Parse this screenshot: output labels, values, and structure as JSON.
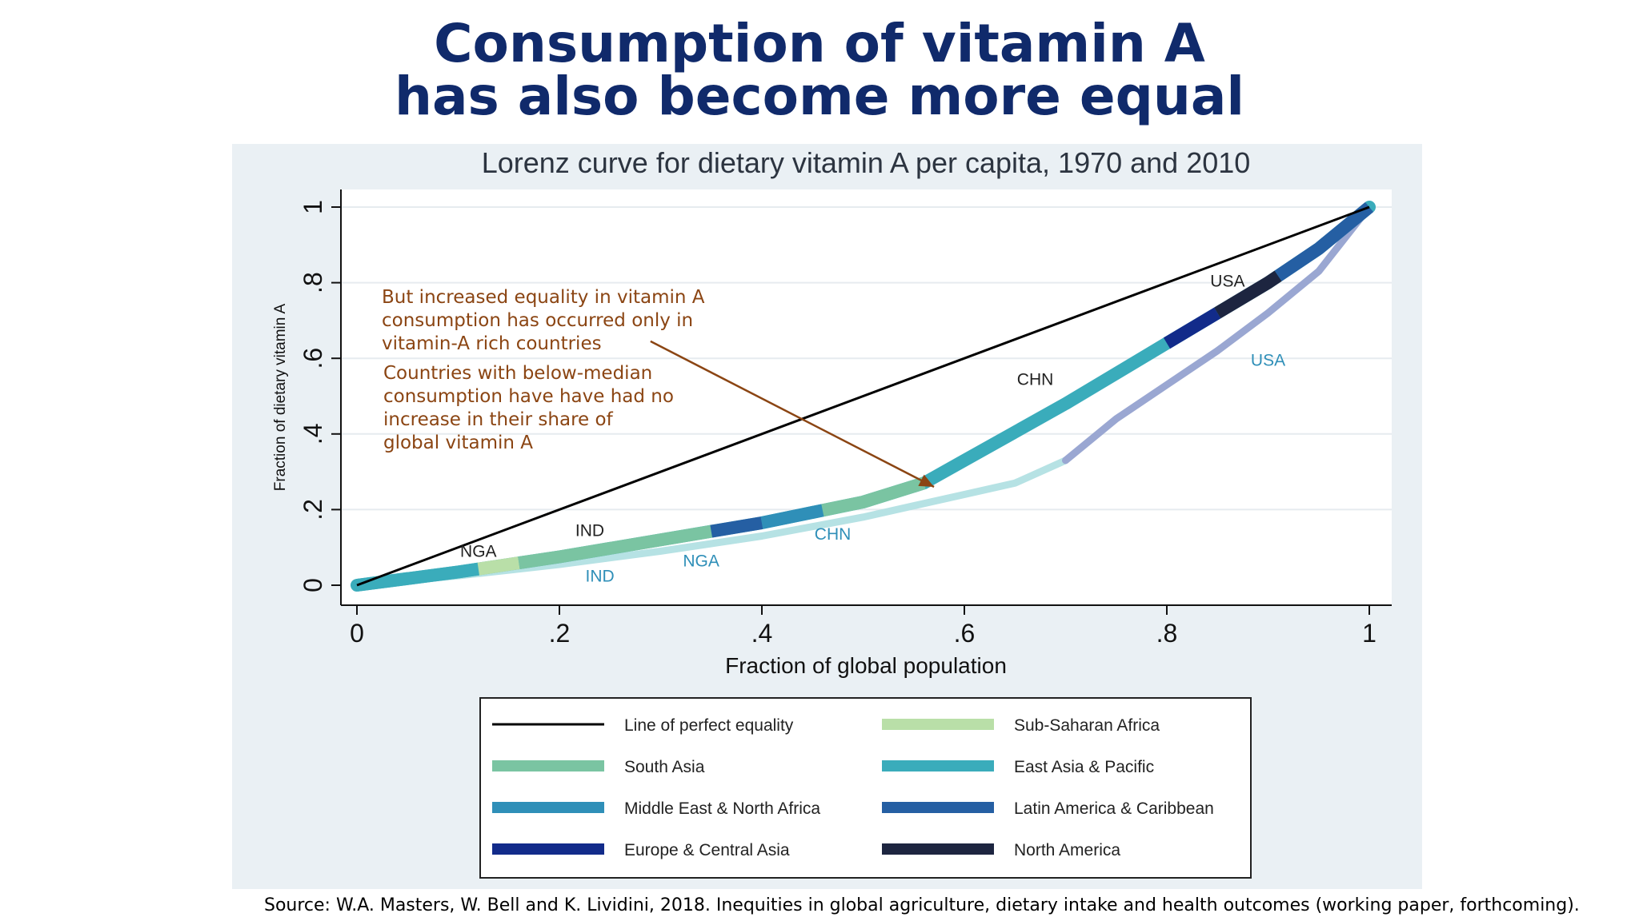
{
  "slide": {
    "title_line1": "Consumption of vitamin A",
    "title_line2": "has also become more equal",
    "source": "Source:  W.A. Masters, W. Bell and K. Lividini, 2018. Inequities in global agriculture, dietary intake and health outcomes (working paper, forthcoming)."
  },
  "colors": {
    "title": "#102a6b",
    "annotation": "#8b4513",
    "equality": "#000000",
    "sub_saharan_africa": "#b9dfa8",
    "south_asia": "#7ac4a2",
    "east_asia_pacific": "#3aacbb",
    "middle_east_north_africa": "#2f8fb8",
    "latin_america_caribbean": "#255fa3",
    "europe_central_asia": "#122b8a",
    "north_america": "#1d2540",
    "curve_1970_light": "#b6e2e4",
    "curve_1970_mid": "#9aa7d2",
    "label_1970": "#2f8fb8",
    "panel_bg": "#eaf0f4"
  },
  "chart_data": {
    "type": "line",
    "title": "Lorenz curve for dietary vitamin A per capita, 1970 and 2010",
    "xlabel": "Fraction of global population",
    "ylabel": "Fraction of dietary vitamin A",
    "xlim": [
      0,
      1
    ],
    "ylim": [
      0,
      1
    ],
    "x_ticks": [
      "0",
      ".2",
      ".4",
      ".6",
      ".8",
      "1"
    ],
    "y_ticks": [
      "0",
      ".2",
      ".4",
      ".6",
      ".8",
      "1"
    ],
    "grid": "horizontal",
    "series": [
      {
        "name": "Line of perfect equality",
        "x": [
          0,
          1
        ],
        "y": [
          0,
          1
        ]
      },
      {
        "x": [
          0,
          0.1,
          0.2,
          0.3,
          0.4,
          0.5,
          0.56,
          0.6,
          0.7,
          0.8,
          0.85,
          0.9,
          0.95,
          1.0
        ],
        "y": [
          0,
          0.035,
          0.075,
          0.12,
          0.165,
          0.22,
          0.27,
          0.33,
          0.48,
          0.64,
          0.72,
          0.8,
          0.89,
          1.0
        ]
      },
      {
        "x": [
          0,
          0.1,
          0.2,
          0.3,
          0.4,
          0.5,
          0.6,
          0.65,
          0.7,
          0.75,
          0.8,
          0.85,
          0.9,
          0.95,
          1.0
        ],
        "y": [
          0,
          0.025,
          0.055,
          0.09,
          0.13,
          0.18,
          0.24,
          0.27,
          0.33,
          0.44,
          0.53,
          0.62,
          0.72,
          0.83,
          1.0
        ]
      }
    ],
    "curve_labels": [
      {
        "text": "NGA",
        "x": 0.12,
        "y": 0.075,
        "year": "2010"
      },
      {
        "text": "IND",
        "x": 0.23,
        "y": 0.13,
        "year": "2010"
      },
      {
        "text": "CHN",
        "x": 0.67,
        "y": 0.53,
        "year": "2010"
      },
      {
        "text": "USA",
        "x": 0.86,
        "y": 0.79,
        "year": "2010"
      },
      {
        "text": "IND",
        "x": 0.24,
        "y": 0.01,
        "year": "1970"
      },
      {
        "text": "NGA",
        "x": 0.34,
        "y": 0.05,
        "year": "1970"
      },
      {
        "text": "CHN",
        "x": 0.47,
        "y": 0.12,
        "year": "1970"
      },
      {
        "text": "USA",
        "x": 0.9,
        "y": 0.58,
        "year": "1970"
      }
    ],
    "annotations": [
      {
        "lines": [
          "But increased equality in vitamin A",
          "consumption has occurred only in",
          "vitamin-A rich countries"
        ],
        "arrow_from": [
          0.29,
          0.645
        ],
        "arrow_to": [
          0.57,
          0.26
        ]
      },
      {
        "lines": [
          "Countries with below-median",
          "consumption have have had no",
          "increase in their share of",
          "global vitamin A"
        ]
      }
    ],
    "legend": {
      "placement": "bottom",
      "items": [
        {
          "label": "Line of perfect equality",
          "color": "#000000",
          "line": true
        },
        {
          "label": "Sub-Saharan Africa",
          "color": "#b9dfa8"
        },
        {
          "label": "South Asia",
          "color": "#7ac4a2"
        },
        {
          "label": "East Asia & Pacific",
          "color": "#3aacbb"
        },
        {
          "label": "Middle East & North Africa",
          "color": "#2f8fb8"
        },
        {
          "label": "Latin America & Caribbean",
          "color": "#255fa3"
        },
        {
          "label": "Europe & Central Asia",
          "color": "#122b8a"
        },
        {
          "label": "North America",
          "color": "#1d2540"
        }
      ]
    }
  }
}
